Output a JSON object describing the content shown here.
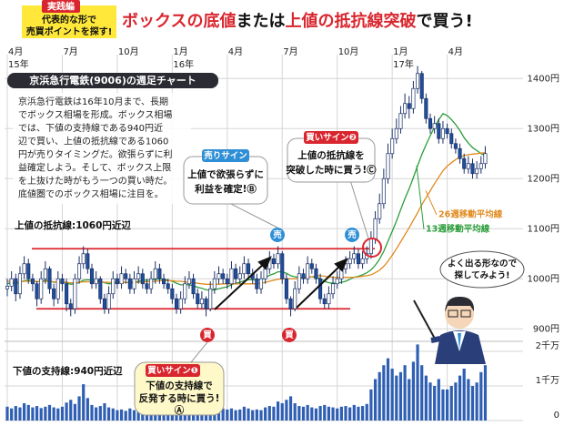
{
  "header": {
    "tag": "実践編",
    "lead": [
      "代表的な形で",
      "売買ポイントを探す!"
    ],
    "title": [
      "ボックスの底値",
      "または",
      "上値の抵抗線突破",
      "で買う!"
    ]
  },
  "chart_data": {
    "type": "candlestick",
    "subtitle": "京浜急行電鉄(9006)の週足チャート",
    "description": [
      "京浜急行電鉄は16年10月まで、長期",
      "でボックス相場を形成。ボックス相場",
      "では、下値の支持線である940円近",
      "辺で買い、上値の抵抗線である1060",
      "円が売りタイミングだ。欲張らずに利",
      "益確定しよう。そして、ボックス上限",
      "を上抜けた時がもう一つの買い時だ。",
      "底値圏でのボックス相場に注目を。"
    ],
    "categories": [
      "4月",
      null,
      null,
      null,
      null,
      null,
      null,
      null,
      null,
      null,
      null,
      null,
      null,
      "7月",
      null,
      null,
      null,
      null,
      null,
      null,
      null,
      null,
      null,
      null,
      null,
      null,
      "10月",
      null,
      null,
      null,
      null,
      null,
      null,
      null,
      null,
      null,
      null,
      null,
      null,
      "1月",
      null,
      null,
      null,
      null,
      null,
      null,
      null,
      null,
      null,
      null,
      null,
      null,
      "4月",
      null,
      null,
      null,
      null,
      null,
      null,
      null,
      null,
      null,
      null,
      null,
      null,
      "7月",
      null,
      null,
      null,
      null,
      null,
      null,
      null,
      null,
      null,
      null,
      null,
      null,
      "10月",
      null,
      null,
      null,
      null,
      null,
      null,
      null,
      null,
      null,
      null,
      null,
      null,
      "1月",
      null,
      null,
      null,
      null,
      null,
      null,
      null,
      null,
      null,
      null,
      null,
      null,
      "4月",
      null,
      null,
      null,
      null,
      null,
      null,
      null,
      null,
      null
    ],
    "category_years": [
      "15年",
      null,
      null,
      null,
      null,
      null,
      null,
      null,
      null,
      null,
      null,
      null,
      null,
      null,
      null,
      null,
      null,
      null,
      null,
      null,
      null,
      null,
      null,
      null,
      null,
      null,
      null,
      null,
      null,
      null,
      null,
      null,
      null,
      null,
      null,
      null,
      null,
      null,
      null,
      "16年",
      null,
      null,
      null,
      null,
      null,
      null,
      null,
      null,
      null,
      null,
      null,
      null,
      null,
      null,
      null,
      null,
      null,
      null,
      null,
      null,
      null,
      null,
      null,
      null,
      null,
      null,
      null,
      null,
      null,
      null,
      null,
      null,
      null,
      null,
      null,
      null,
      null,
      null,
      null,
      null,
      null,
      null,
      null,
      null,
      null,
      null,
      null,
      null,
      null,
      null,
      null,
      "17年",
      null,
      null,
      null,
      null,
      null,
      null,
      null,
      null,
      null,
      null,
      null,
      null,
      null,
      null,
      null,
      null,
      null,
      null,
      null,
      null,
      null
    ],
    "ohlc": [
      [
        980,
        1000,
        965,
        985
      ],
      [
        985,
        1015,
        975,
        1000
      ],
      [
        1000,
        1010,
        955,
        970
      ],
      [
        970,
        1025,
        960,
        1010
      ],
      [
        1010,
        1045,
        1000,
        1030
      ],
      [
        1030,
        1040,
        990,
        1000
      ],
      [
        1000,
        1010,
        975,
        990
      ],
      [
        990,
        995,
        945,
        960
      ],
      [
        960,
        1015,
        950,
        1000
      ],
      [
        1000,
        1035,
        990,
        1020
      ],
      [
        1020,
        1025,
        970,
        980
      ],
      [
        980,
        990,
        945,
        960
      ],
      [
        960,
        1015,
        950,
        1000
      ],
      [
        1000,
        1010,
        975,
        990
      ],
      [
        990,
        1000,
        935,
        950
      ],
      [
        950,
        960,
        925,
        940
      ],
      [
        940,
        1010,
        930,
        1000
      ],
      [
        1000,
        1045,
        990,
        1030
      ],
      [
        1030,
        1065,
        1020,
        1050
      ],
      [
        1050,
        1060,
        1010,
        1020
      ],
      [
        1020,
        1030,
        980,
        990
      ],
      [
        990,
        1015,
        980,
        1000
      ],
      [
        1000,
        1005,
        950,
        960
      ],
      [
        960,
        970,
        930,
        940
      ],
      [
        940,
        985,
        930,
        970
      ],
      [
        970,
        1015,
        960,
        1000
      ],
      [
        1000,
        1010,
        980,
        990
      ],
      [
        990,
        1025,
        980,
        1010
      ],
      [
        1010,
        1020,
        990,
        1000
      ],
      [
        1000,
        1010,
        970,
        980
      ],
      [
        980,
        1015,
        970,
        1000
      ],
      [
        1000,
        1025,
        990,
        1010
      ],
      [
        1010,
        1020,
        980,
        990
      ],
      [
        990,
        1000,
        970,
        980
      ],
      [
        980,
        1015,
        970,
        1000
      ],
      [
        1000,
        1035,
        990,
        1020
      ],
      [
        1020,
        1030,
        990,
        1000
      ],
      [
        1000,
        1010,
        980,
        990
      ],
      [
        990,
        1000,
        970,
        980
      ],
      [
        980,
        990,
        950,
        960
      ],
      [
        960,
        970,
        930,
        940
      ],
      [
        940,
        975,
        930,
        960
      ],
      [
        960,
        1005,
        950,
        990
      ],
      [
        990,
        1015,
        980,
        1000
      ],
      [
        1000,
        1010,
        960,
        970
      ],
      [
        970,
        980,
        940,
        950
      ],
      [
        950,
        975,
        940,
        960
      ],
      [
        960,
        965,
        925,
        940
      ],
      [
        940,
        995,
        935,
        980
      ],
      [
        980,
        1015,
        970,
        1000
      ],
      [
        1000,
        1025,
        990,
        1010
      ],
      [
        1010,
        1020,
        990,
        1000
      ],
      [
        1000,
        1010,
        980,
        990
      ],
      [
        990,
        1035,
        980,
        1020
      ],
      [
        1020,
        1030,
        990,
        1000
      ],
      [
        1000,
        1025,
        990,
        1010
      ],
      [
        1010,
        1045,
        1000,
        1030
      ],
      [
        1030,
        1040,
        1000,
        1010
      ],
      [
        1010,
        1020,
        990,
        1000
      ],
      [
        1000,
        1010,
        970,
        980
      ],
      [
        980,
        1015,
        970,
        1000
      ],
      [
        1000,
        1035,
        990,
        1020
      ],
      [
        1020,
        1055,
        1010,
        1040
      ],
      [
        1040,
        1050,
        1020,
        1030
      ],
      [
        1030,
        1065,
        1020,
        1050
      ],
      [
        1050,
        1055,
        990,
        1000
      ],
      [
        1000,
        1010,
        950,
        960
      ],
      [
        960,
        965,
        925,
        940
      ],
      [
        940,
        995,
        935,
        980
      ],
      [
        980,
        1025,
        970,
        1010
      ],
      [
        1010,
        1020,
        990,
        1000
      ],
      [
        1000,
        1045,
        990,
        1030
      ],
      [
        1030,
        1040,
        1010,
        1020
      ],
      [
        1020,
        1030,
        990,
        1000
      ],
      [
        1000,
        1010,
        950,
        960
      ],
      [
        960,
        970,
        940,
        950
      ],
      [
        950,
        985,
        940,
        970
      ],
      [
        970,
        1005,
        960,
        990
      ],
      [
        990,
        1015,
        980,
        1000
      ],
      [
        1000,
        1035,
        990,
        1020
      ],
      [
        1020,
        1045,
        1010,
        1030
      ],
      [
        1030,
        1055,
        1020,
        1040
      ],
      [
        1040,
        1065,
        1030,
        1050
      ],
      [
        1050,
        1060,
        1020,
        1030
      ],
      [
        1030,
        1055,
        1020,
        1040
      ],
      [
        1040,
        1065,
        1030,
        1050
      ],
      [
        1050,
        1095,
        1040,
        1080
      ],
      [
        1080,
        1135,
        1070,
        1120
      ],
      [
        1120,
        1170,
        1110,
        1150
      ],
      [
        1150,
        1220,
        1140,
        1200
      ],
      [
        1200,
        1270,
        1190,
        1250
      ],
      [
        1250,
        1300,
        1240,
        1280
      ],
      [
        1280,
        1320,
        1270,
        1300
      ],
      [
        1300,
        1345,
        1290,
        1330
      ],
      [
        1330,
        1370,
        1320,
        1350
      ],
      [
        1350,
        1365,
        1320,
        1340
      ],
      [
        1340,
        1395,
        1330,
        1380
      ],
      [
        1380,
        1425,
        1370,
        1410
      ],
      [
        1410,
        1415,
        1350,
        1360
      ],
      [
        1360,
        1370,
        1310,
        1320
      ],
      [
        1320,
        1330,
        1290,
        1300
      ],
      [
        1300,
        1325,
        1290,
        1310
      ],
      [
        1310,
        1320,
        1270,
        1280
      ],
      [
        1280,
        1315,
        1270,
        1300
      ],
      [
        1300,
        1310,
        1280,
        1290
      ],
      [
        1290,
        1300,
        1260,
        1270
      ],
      [
        1270,
        1280,
        1250,
        1260
      ],
      [
        1260,
        1270,
        1230,
        1240
      ],
      [
        1240,
        1250,
        1210,
        1220
      ],
      [
        1220,
        1245,
        1210,
        1230
      ],
      [
        1230,
        1240,
        1200,
        1210
      ],
      [
        1210,
        1235,
        1200,
        1220
      ],
      [
        1220,
        1245,
        1210,
        1230
      ],
      [
        1230,
        1265,
        1220,
        1250
      ]
    ],
    "up_color": "#ffffff",
    "down_color": "#1f4e9c",
    "candle_edge": "#1a2f66",
    "moving_averages": [
      {
        "name": "13週移動平均線",
        "color": "#2a9d3a",
        "values": [
          990,
          992,
          990,
          993,
          996,
          997,
          996,
          994,
          995,
          997,
          996,
          993,
          994,
          994,
          992,
          989,
          990,
          993,
          997,
          998,
          997,
          997,
          995,
          992,
          990,
          991,
          992,
          993,
          993,
          992,
          992,
          995,
          997,
          997,
          997,
          999,
          1000,
          999,
          997,
          995,
          991,
          988,
          988,
          988,
          986,
          983,
          981,
          978,
          977,
          978,
          980,
          982,
          984,
          988,
          991,
          993,
          996,
          998,
          998,
          997,
          998,
          1002,
          1007,
          1010,
          1014,
          1014,
          1011,
          1006,
          1004,
          1003,
          1003,
          1004,
          1004,
          1003,
          1000,
          995,
          992,
          991,
          991,
          993,
          995,
          999,
          1003,
          1005,
          1008,
          1012,
          1018,
          1027,
          1039,
          1055,
          1075,
          1095,
          1115,
          1138,
          1160,
          1180,
          1202,
          1226,
          1248,
          1268,
          1286,
          1303,
          1318,
          1330,
          1326,
          1318,
          1308,
          1296,
          1282,
          1271,
          1262,
          1256,
          1250,
          1246
        ]
      },
      {
        "name": "26週移動平均線",
        "color": "#e08a1e",
        "values": [
          995,
          995,
          994,
          994,
          995,
          995,
          995,
          995,
          994,
          995,
          995,
          994,
          994,
          994,
          993,
          992,
          992,
          993,
          994,
          994,
          994,
          994,
          994,
          993,
          993,
          993,
          993,
          993,
          993,
          993,
          993,
          993,
          994,
          994,
          994,
          995,
          996,
          996,
          996,
          996,
          995,
          995,
          994,
          993,
          992,
          991,
          990,
          989,
          989,
          989,
          989,
          990,
          990,
          990,
          990,
          990,
          990,
          990,
          990,
          990,
          991,
          993,
          995,
          997,
          999,
          1000,
          1000,
          1000,
          1000,
          1001,
          1002,
          1003,
          1004,
          1006,
          1006,
          1005,
          1004,
          1003,
          1003,
          1003,
          1003,
          1003,
          1003,
          1004,
          1005,
          1006,
          1008,
          1012,
          1017,
          1025,
          1035,
          1047,
          1060,
          1074,
          1088,
          1102,
          1117,
          1132,
          1148,
          1162,
          1176,
          1190,
          1203,
          1216,
          1225,
          1232,
          1238,
          1243,
          1246,
          1248,
          1249,
          1250,
          1251,
          1252
        ]
      }
    ],
    "ylim": [
      875,
      1435
    ],
    "yticks": [
      {
        "value": 900,
        "label": "900円"
      },
      {
        "value": 1000,
        "label": "1000円"
      },
      {
        "value": 1100,
        "label": "1100円"
      },
      {
        "value": 1200,
        "label": "1200円"
      },
      {
        "value": 1300,
        "label": "1300円"
      },
      {
        "value": 1400,
        "label": "1400円"
      }
    ],
    "grid": true,
    "resistance": {
      "value": 1060,
      "label": "上値の抵抗線:1060円近辺",
      "color": "#d9262e"
    },
    "support": {
      "value": 940,
      "label": "下値の支持線:940円近辺",
      "color": "#d9262e"
    },
    "volume": {
      "color": "#2f5fb3",
      "values": [
        400,
        350,
        420,
        380,
        500,
        450,
        380,
        420,
        360,
        400,
        450,
        380,
        350,
        400,
        520,
        600,
        480,
        700,
        1050,
        650,
        450,
        380,
        420,
        500,
        380,
        350,
        300,
        320,
        280,
        350,
        300,
        280,
        320,
        300,
        260,
        280,
        300,
        320,
        350,
        450,
        600,
        500,
        420,
        380,
        400,
        450,
        420,
        650,
        500,
        420,
        380,
        350,
        320,
        350,
        300,
        320,
        400,
        350,
        300,
        320,
        300,
        380,
        420,
        400,
        550,
        500,
        600,
        700,
        500,
        420,
        400,
        450,
        380,
        350,
        420,
        450,
        400,
        380,
        350,
        400,
        420,
        380,
        450,
        400,
        420,
        480,
        900,
        1200,
        1400,
        1600,
        1800,
        1500,
        1300,
        1400,
        1600,
        1200,
        1700,
        2200,
        1600,
        1300,
        1100,
        1000,
        1200,
        900,
        900,
        1000,
        1100,
        1300,
        1500,
        1200,
        1000,
        1100,
        1400,
        1600
      ],
      "ylim": [
        0,
        2290
      ],
      "yticks": [
        {
          "value": 0,
          "label": "0"
        },
        {
          "value": 1000,
          "label": "1千万"
        },
        {
          "value": 2000,
          "label": "2千万"
        }
      ]
    },
    "buy_marker": "買",
    "sell_marker": "売"
  },
  "callouts": {
    "sell": {
      "tag": "売りサイン",
      "lines": [
        "上値で欲張らずに",
        "利益を確定!Ⓑ"
      ]
    },
    "buy2": {
      "tag": "買いサイン❷",
      "lines": [
        "上値の抵抗線を",
        "突破した時に買う!Ⓒ"
      ]
    },
    "buy1": {
      "tag": "買いサイン❶",
      "lines": [
        "下値の支持線で",
        "反発する時に買う!",
        "Ⓐ"
      ]
    },
    "character": [
      "よく出る形なので",
      "探してみよう!"
    ]
  }
}
